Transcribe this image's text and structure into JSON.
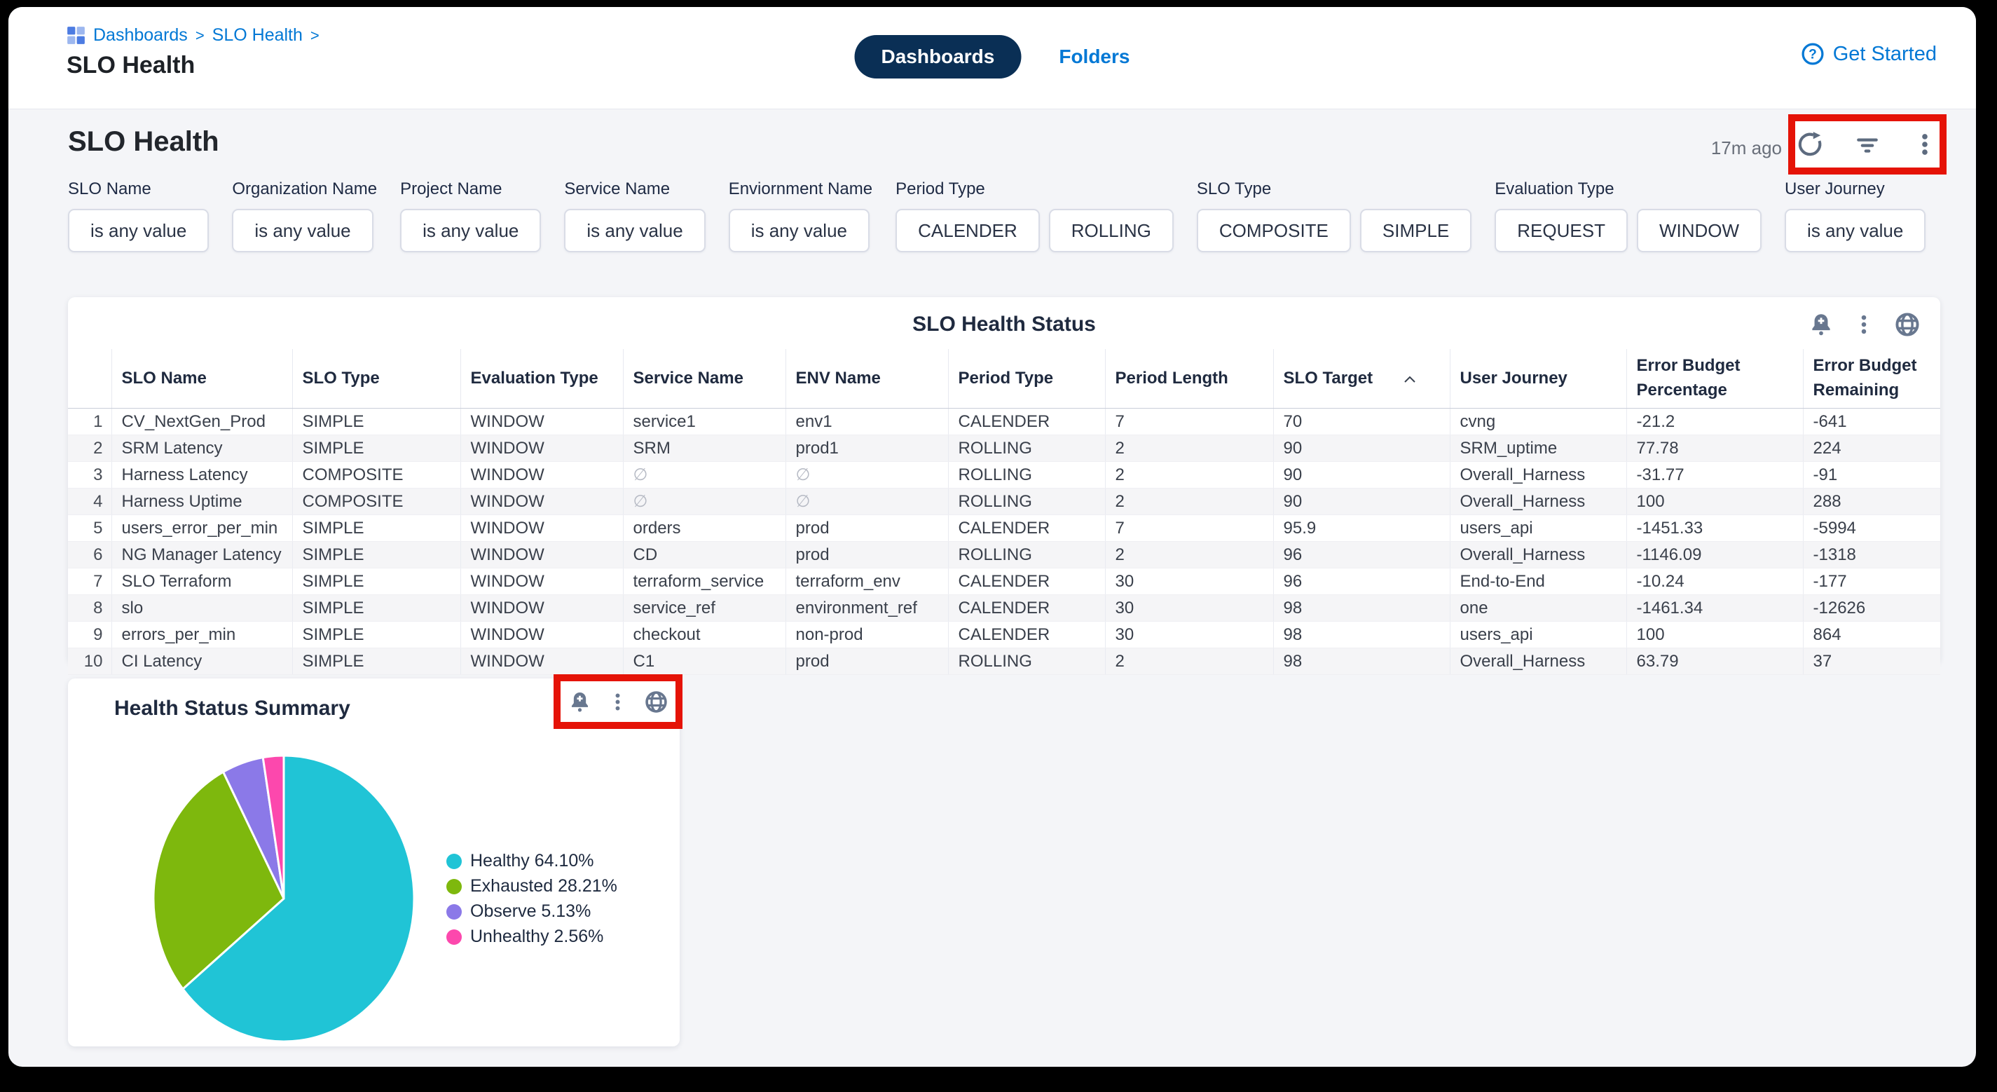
{
  "header": {
    "breadcrumb": {
      "items": [
        "Dashboards",
        "SLO Health"
      ],
      "separator": ">"
    },
    "window_title": "SLO Health",
    "tabs": [
      {
        "label": "Dashboards",
        "active": true
      },
      {
        "label": "Folders",
        "active": false
      }
    ],
    "get_started_label": "Get Started",
    "help_icon": "question-circle-icon",
    "breadcrumb_icon": "dashboards-grid-icon"
  },
  "toolbar": {
    "page_title": "SLO Health",
    "last_refreshed": "17m ago",
    "icons": [
      "refresh-icon",
      "filter-icon",
      "kebab-menu-icon"
    ]
  },
  "filters": [
    {
      "label": "SLO Name",
      "chips": [
        "is any value"
      ]
    },
    {
      "label": "Organization Name",
      "chips": [
        "is any value"
      ]
    },
    {
      "label": "Project Name",
      "chips": [
        "is any value"
      ]
    },
    {
      "label": "Service Name",
      "chips": [
        "is any value"
      ]
    },
    {
      "label": "Enviornment Name",
      "chips": [
        "is any value"
      ]
    },
    {
      "label": "Period Type",
      "chips": [
        "CALENDER",
        "ROLLING"
      ]
    },
    {
      "label": "SLO Type",
      "chips": [
        "COMPOSITE",
        "SIMPLE"
      ]
    },
    {
      "label": "Evaluation Type",
      "chips": [
        "REQUEST",
        "WINDOW"
      ]
    },
    {
      "label": "User Journey",
      "chips": [
        "is any value"
      ]
    }
  ],
  "table": {
    "title": "SLO Health Status",
    "icons": [
      "bell-plus-icon",
      "kebab-menu-icon",
      "globe-icon"
    ],
    "columns": [
      "SLO Name",
      "SLO Type",
      "Evaluation Type",
      "Service Name",
      "ENV Name",
      "Period Type",
      "Period Length",
      "SLO Target",
      "User Journey",
      "Error Budget Percentage",
      "Error Budget Remaining"
    ],
    "sorted_column": "SLO Target",
    "sort_direction": "asc",
    "rows": [
      [
        "CV_NextGen_Prod",
        "SIMPLE",
        "WINDOW",
        "service1",
        "env1",
        "CALENDER",
        "7",
        "70",
        "cvng",
        "-21.2",
        "-641"
      ],
      [
        "SRM Latency",
        "SIMPLE",
        "WINDOW",
        "SRM",
        "prod1",
        "ROLLING",
        "2",
        "90",
        "SRM_uptime",
        "77.78",
        "224"
      ],
      [
        "Harness Latency",
        "COMPOSITE",
        "WINDOW",
        "∅",
        "∅",
        "ROLLING",
        "2",
        "90",
        "Overall_Harness",
        "-31.77",
        "-91"
      ],
      [
        "Harness Uptime",
        "COMPOSITE",
        "WINDOW",
        "∅",
        "∅",
        "ROLLING",
        "2",
        "90",
        "Overall_Harness",
        "100",
        "288"
      ],
      [
        "users_error_per_min",
        "SIMPLE",
        "WINDOW",
        "orders",
        "prod",
        "CALENDER",
        "7",
        "95.9",
        "users_api",
        "-1451.33",
        "-5994"
      ],
      [
        "NG Manager Latency",
        "SIMPLE",
        "WINDOW",
        "CD",
        "prod",
        "ROLLING",
        "2",
        "96",
        "Overall_Harness",
        "-1146.09",
        "-1318"
      ],
      [
        "SLO Terraform",
        "SIMPLE",
        "WINDOW",
        "terraform_service",
        "terraform_env",
        "CALENDER",
        "30",
        "96",
        "End-to-End",
        "-10.24",
        "-177"
      ],
      [
        "slo",
        "SIMPLE",
        "WINDOW",
        "service_ref",
        "environment_ref",
        "CALENDER",
        "30",
        "98",
        "one",
        "-1461.34",
        "-12626"
      ],
      [
        "errors_per_min",
        "SIMPLE",
        "WINDOW",
        "checkout",
        "non-prod",
        "CALENDER",
        "30",
        "98",
        "users_api",
        "100",
        "864"
      ],
      [
        "CI Latency",
        "SIMPLE",
        "WINDOW",
        "C1",
        "prod",
        "ROLLING",
        "2",
        "98",
        "Overall_Harness",
        "63.79",
        "37"
      ]
    ]
  },
  "pie_card": {
    "title": "Health Status Summary",
    "icons": [
      "bell-plus-icon",
      "kebab-menu-icon",
      "globe-icon"
    ]
  },
  "chart_data": {
    "type": "pie",
    "title": "Health Status Summary",
    "legend_position": "right",
    "start_angle_deg": 0,
    "direction": "clockwise",
    "segments": [
      {
        "label": "Healthy",
        "value": 64.1,
        "display": "Healthy 64.10%",
        "color": "#20c4d6"
      },
      {
        "label": "Exhausted",
        "value": 28.21,
        "display": "Exhausted 28.21%",
        "color": "#7eb80d"
      },
      {
        "label": "Observe",
        "value": 5.13,
        "display": "Observe 5.13%",
        "color": "#8b79e8"
      },
      {
        "label": "Unhealthy",
        "value": 2.56,
        "display": "Unhealthy 2.56%",
        "color": "#fc48ad"
      }
    ]
  },
  "colors": {
    "accent_blue": "#0278d5",
    "pill_navy": "#0a2f55",
    "annotation_red": "#e51307",
    "page_bg": "#f4f5f8",
    "icon_slate": "#68778f"
  }
}
